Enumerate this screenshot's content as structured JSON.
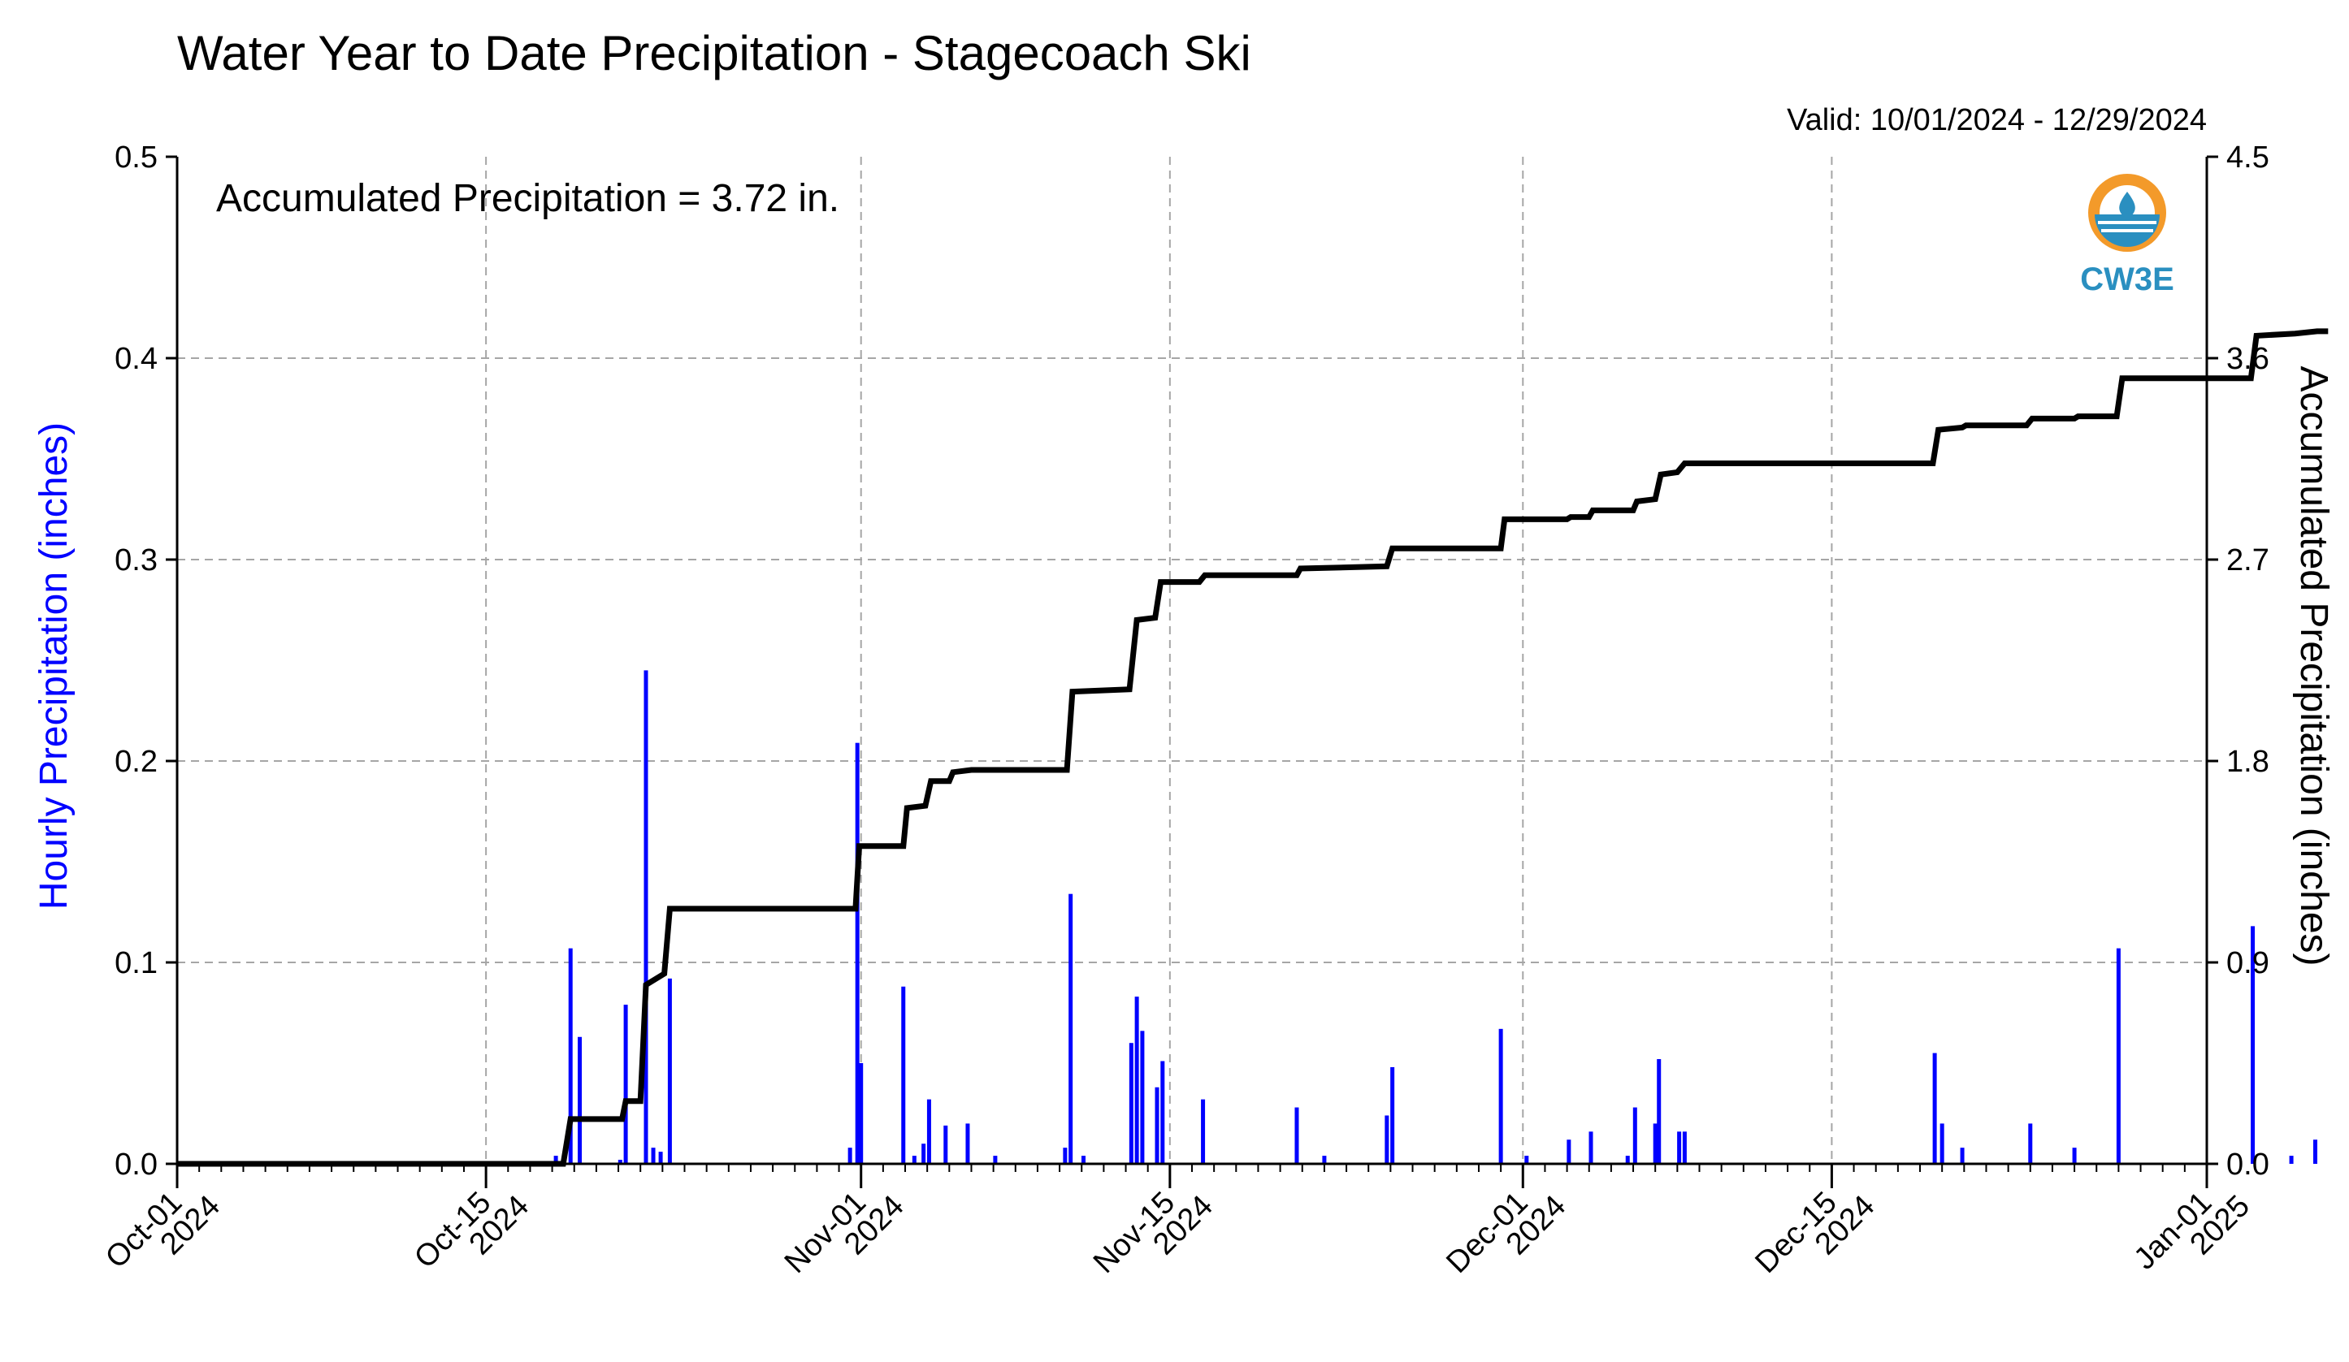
{
  "chart_data": {
    "type": "bar",
    "title": "Water Year to Date Precipitation - Stagecoach Ski",
    "valid_text": "Valid: 10/01/2024 - 12/29/2024",
    "annotation": "Accumulated Precipitation = 3.72 in.",
    "ylabel_left": "Hourly Precipitation (inches)",
    "ylabel_right": "Accumulated Precipitation (inches)",
    "ylim_left": [
      0,
      0.5
    ],
    "ylim_right": [
      0,
      4.5
    ],
    "xlim": [
      "2024-10-01",
      "2025-01-01"
    ],
    "grid": true,
    "yticks_left": [
      "0.0",
      "0.1",
      "0.2",
      "0.3",
      "0.4",
      "0.5"
    ],
    "yticks_right": [
      "0.0",
      "0.9",
      "1.8",
      "2.7",
      "3.6",
      "4.5"
    ],
    "x_major_ticks": [
      {
        "line1": "Oct-01",
        "line2": "2024",
        "date": "2024-10-01"
      },
      {
        "line1": "Oct-15",
        "line2": "2024",
        "date": "2024-10-15"
      },
      {
        "line1": "Nov-01",
        "line2": "2024",
        "date": "2024-11-01"
      },
      {
        "line1": "Nov-15",
        "line2": "2024",
        "date": "2024-11-15"
      },
      {
        "line1": "Dec-01",
        "line2": "2024",
        "date": "2024-12-01"
      },
      {
        "line1": "Dec-15",
        "line2": "2024",
        "date": "2024-12-15"
      },
      {
        "line1": "Jan-01",
        "line2": "2025",
        "date": "2025-01-01"
      }
    ],
    "series": [
      {
        "name": "Hourly Precipitation",
        "color": "#0000ff",
        "points": [
          [
            "2024-10-18T04:00",
            0.004
          ],
          [
            "2024-10-18T20:00",
            0.107
          ],
          [
            "2024-10-19T06:00",
            0.063
          ],
          [
            "2024-10-21T02:00",
            0.002
          ],
          [
            "2024-10-21T08:00",
            0.079
          ],
          [
            "2024-10-22T06:00",
            0.245
          ],
          [
            "2024-10-22T14:00",
            0.008
          ],
          [
            "2024-10-22T22:00",
            0.006
          ],
          [
            "2024-10-23T08:00",
            0.092
          ],
          [
            "2024-10-31T12:00",
            0.008
          ],
          [
            "2024-10-31T20:00",
            0.209
          ],
          [
            "2024-11-01T00:00",
            0.05
          ],
          [
            "2024-11-02T22:00",
            0.088
          ],
          [
            "2024-11-03T10:00",
            0.004
          ],
          [
            "2024-11-03T20:00",
            0.01
          ],
          [
            "2024-11-04T02:00",
            0.032
          ],
          [
            "2024-11-04T20:00",
            0.019
          ],
          [
            "2024-11-05T20:00",
            0.02
          ],
          [
            "2024-11-07T02:00",
            0.004
          ],
          [
            "2024-11-10T06:00",
            0.008
          ],
          [
            "2024-11-10T12:00",
            0.134
          ],
          [
            "2024-11-11T02:00",
            0.004
          ],
          [
            "2024-11-13T06:00",
            0.06
          ],
          [
            "2024-11-13T12:00",
            0.083
          ],
          [
            "2024-11-13T18:00",
            0.066
          ],
          [
            "2024-11-14T10:00",
            0.038
          ],
          [
            "2024-11-14T16:00",
            0.051
          ],
          [
            "2024-11-16T12:00",
            0.032
          ],
          [
            "2024-11-20T18:00",
            0.028
          ],
          [
            "2024-11-22T00:00",
            0.004
          ],
          [
            "2024-11-24T20:00",
            0.024
          ],
          [
            "2024-11-25T02:00",
            0.048
          ],
          [
            "2024-11-30T00:00",
            0.067
          ],
          [
            "2024-12-01T04:00",
            0.004
          ],
          [
            "2024-12-03T02:00",
            0.012
          ],
          [
            "2024-12-04T02:00",
            0.016
          ],
          [
            "2024-12-05T18:00",
            0.004
          ],
          [
            "2024-12-06T02:00",
            0.028
          ],
          [
            "2024-12-07T00:00",
            0.02
          ],
          [
            "2024-12-07T04:00",
            0.052
          ],
          [
            "2024-12-08T02:00",
            0.016
          ],
          [
            "2024-12-08T08:00",
            0.016
          ],
          [
            "2024-12-19T16:00",
            0.055
          ],
          [
            "2024-12-20T00:00",
            0.02
          ],
          [
            "2024-12-20T22:00",
            0.008
          ],
          [
            "2024-12-24T00:00",
            0.02
          ],
          [
            "2024-12-26T00:00",
            0.008
          ],
          [
            "2024-12-28T00:00",
            0.107
          ],
          [
            "2025-01-03T02:00",
            0.118
          ],
          [
            "2025-01-04T20:00",
            0.004
          ],
          [
            "2025-01-05T22:00",
            0.012
          ]
        ]
      },
      {
        "name": "Accumulated Precipitation",
        "color": "#000000",
        "points": [
          [
            "2024-10-01T00:00",
            0.0
          ],
          [
            "2024-10-18T12:00",
            0.0
          ],
          [
            "2024-10-18T20:00",
            0.2
          ],
          [
            "2024-10-21T04:00",
            0.2
          ],
          [
            "2024-10-21T08:00",
            0.28
          ],
          [
            "2024-10-22T00:00",
            0.28
          ],
          [
            "2024-10-22T06:00",
            0.8
          ],
          [
            "2024-10-23T02:00",
            0.85
          ],
          [
            "2024-10-23T08:00",
            1.14
          ],
          [
            "2024-10-31T18:00",
            1.14
          ],
          [
            "2024-10-31T22:00",
            1.42
          ],
          [
            "2024-11-02T22:00",
            1.42
          ],
          [
            "2024-11-03T02:00",
            1.59
          ],
          [
            "2024-11-03T22:00",
            1.6
          ],
          [
            "2024-11-04T04:00",
            1.71
          ],
          [
            "2024-11-05T00:00",
            1.71
          ],
          [
            "2024-11-05T04:00",
            1.75
          ],
          [
            "2024-11-06T00:00",
            1.76
          ],
          [
            "2024-11-10T08:00",
            1.76
          ],
          [
            "2024-11-10T14:00",
            2.11
          ],
          [
            "2024-11-13T04:00",
            2.12
          ],
          [
            "2024-11-13T12:00",
            2.43
          ],
          [
            "2024-11-14T08:00",
            2.44
          ],
          [
            "2024-11-14T14:00",
            2.6
          ],
          [
            "2024-11-16T08:00",
            2.6
          ],
          [
            "2024-11-16T14:00",
            2.63
          ],
          [
            "2024-11-19T00:00",
            2.63
          ],
          [
            "2024-11-20T18:00",
            2.63
          ],
          [
            "2024-11-20T22:00",
            2.66
          ],
          [
            "2024-11-24T20:00",
            2.67
          ],
          [
            "2024-11-25T02:00",
            2.75
          ],
          [
            "2024-11-30T00:00",
            2.75
          ],
          [
            "2024-11-30T04:00",
            2.88
          ],
          [
            "2024-12-03T00:00",
            2.88
          ],
          [
            "2024-12-03T04:00",
            2.89
          ],
          [
            "2024-12-04T00:00",
            2.89
          ],
          [
            "2024-12-04T04:00",
            2.92
          ],
          [
            "2024-12-06T00:00",
            2.92
          ],
          [
            "2024-12-06T04:00",
            2.96
          ],
          [
            "2024-12-07T00:00",
            2.97
          ],
          [
            "2024-12-07T06:00",
            3.08
          ],
          [
            "2024-12-08T00:00",
            3.09
          ],
          [
            "2024-12-08T08:00",
            3.13
          ],
          [
            "2024-12-19T14:00",
            3.13
          ],
          [
            "2024-12-19T20:00",
            3.28
          ],
          [
            "2024-12-20T22:00",
            3.29
          ],
          [
            "2024-12-21T02:00",
            3.3
          ],
          [
            "2024-12-23T20:00",
            3.3
          ],
          [
            "2024-12-24T02:00",
            3.33
          ],
          [
            "2024-12-26T00:00",
            3.33
          ],
          [
            "2024-12-26T04:00",
            3.34
          ],
          [
            "2024-12-27T22:00",
            3.34
          ],
          [
            "2024-12-28T04:00",
            3.51
          ],
          [
            "2025-01-03T00:00",
            3.51
          ],
          [
            "2025-01-03T06:00",
            3.7
          ],
          [
            "2025-01-05T00:00",
            3.71
          ],
          [
            "2025-01-06T00:00",
            3.72
          ],
          [
            "2025-01-06T12:00",
            3.72
          ]
        ]
      }
    ]
  },
  "logo": {
    "text": "CW3E",
    "colors": {
      "orange": "#f39a2a",
      "blue": "#2a8fc0"
    }
  }
}
